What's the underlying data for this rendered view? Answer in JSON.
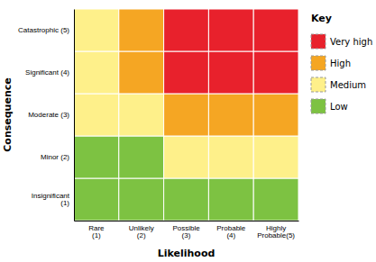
{
  "chart_data": {
    "type": "heatmap",
    "xlabel": "Likelihood",
    "ylabel": "Consequence",
    "x_categories": [
      "Rare (1)",
      "Unlikely (2)",
      "Possible (3)",
      "Probable (4)",
      "Highly Probable(5)"
    ],
    "y_categories": [
      "Insignificant\n(1)",
      "Minor (2)",
      "Moderate (3)",
      "Significant (4)",
      "Catastrophic (5)"
    ],
    "cells": [
      [
        "#7dc242",
        "#7dc242",
        "#7dc242",
        "#7dc242",
        "#7dc242"
      ],
      [
        "#7dc242",
        "#7dc242",
        "#fef08a",
        "#fef08a",
        "#fef08a"
      ],
      [
        "#fef08a",
        "#fef08a",
        "#f5a623",
        "#f5a623",
        "#f5a623"
      ],
      [
        "#fef08a",
        "#f5a623",
        "#e8212c",
        "#e8212c",
        "#e8212c"
      ],
      [
        "#fef08a",
        "#f5a623",
        "#e8212c",
        "#e8212c",
        "#e8212c"
      ]
    ],
    "legend": "right",
    "legend_title": "Key",
    "series": [
      {
        "name": "Very high",
        "color": "#e8212c"
      },
      {
        "name": "High",
        "color": "#f5a623"
      },
      {
        "name": "Medium",
        "color": "#fef08a"
      },
      {
        "name": "Low",
        "color": "#7dc242"
      }
    ]
  }
}
